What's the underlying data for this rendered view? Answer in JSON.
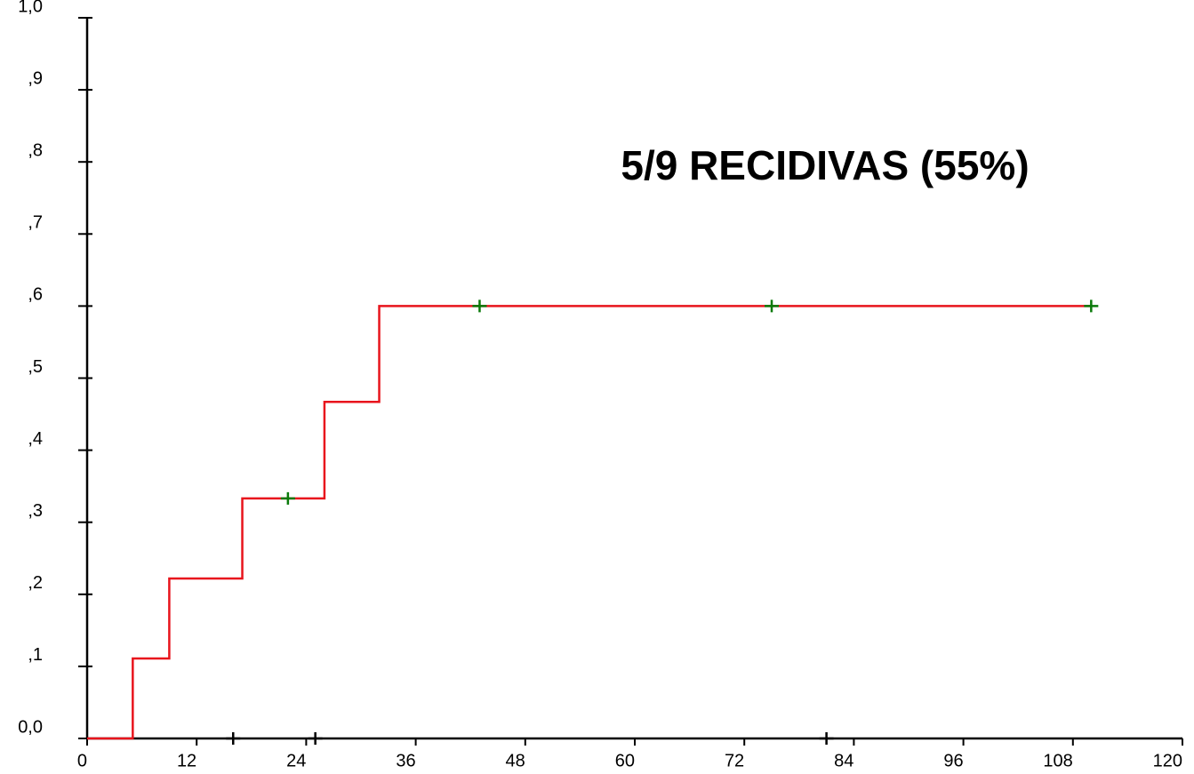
{
  "chart_data": {
    "type": "step",
    "annotation": "5/9 RECIDIVAS (55%)",
    "xlim": [
      0,
      120
    ],
    "xticks": [
      0,
      12,
      24,
      36,
      48,
      60,
      72,
      84,
      96,
      108,
      120
    ],
    "ylim": [
      0,
      1
    ],
    "yticks": [
      {
        "value": 0,
        "label": "0,0"
      },
      {
        "value": 0.1,
        "label": ",1"
      },
      {
        "value": 0.2,
        "label": ",2"
      },
      {
        "value": 0.3,
        "label": ",3"
      },
      {
        "value": 0.4,
        "label": ",4"
      },
      {
        "value": 0.5,
        "label": ",5"
      },
      {
        "value": 0.6,
        "label": ",6"
      },
      {
        "value": 0.7,
        "label": ",7"
      },
      {
        "value": 0.8,
        "label": ",8"
      },
      {
        "value": 0.9,
        "label": ",9"
      },
      {
        "value": 1,
        "label": "1,0"
      }
    ],
    "series": [
      {
        "color": "#e8141c",
        "x": [
          0,
          5,
          9,
          17,
          26,
          32,
          110
        ],
        "values": [
          0,
          0.111,
          0.222,
          0.333,
          0.467,
          0.6,
          0.6
        ]
      }
    ],
    "censored": [
      {
        "color": "#0a7a0a",
        "x": [
          22,
          43,
          75,
          110
        ],
        "values": [
          0.333,
          0.6,
          0.6,
          0.6
        ]
      },
      {
        "color": "#000000",
        "x": [
          16,
          25,
          81
        ],
        "values": [
          0,
          0,
          0
        ]
      }
    ]
  }
}
